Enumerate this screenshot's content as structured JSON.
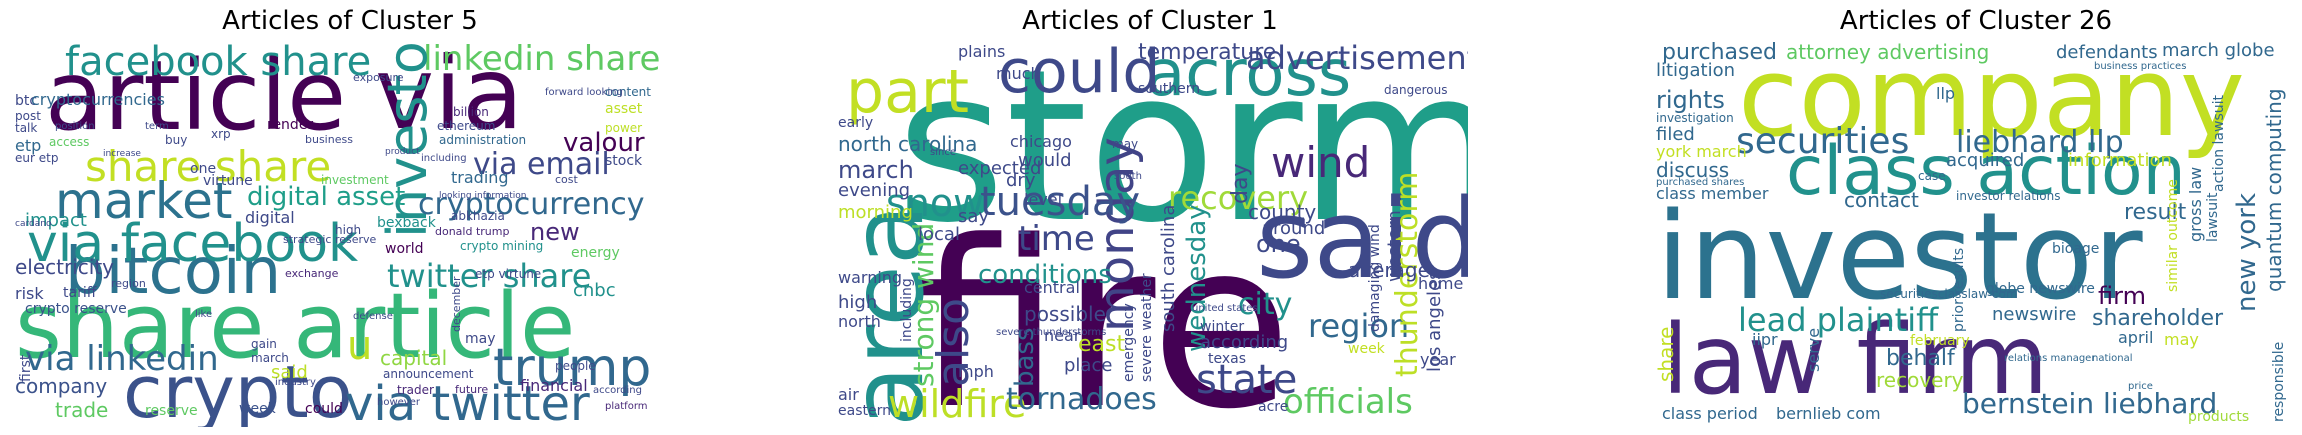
{
  "panels": [
    {
      "title": "Articles of Cluster 5",
      "words": {
        "article": "article",
        "via": "via",
        "share_article": "share article",
        "bitcoin": "bitcoin",
        "crypto": "crypto",
        "facebook_share": "facebook share",
        "linkedin_share": "linkedin share",
        "share_share": "share share",
        "market": "market",
        "via_facebook": "via facebook",
        "investor": "investor",
        "trump": "trump",
        "via_twitter": "via twitter",
        "twitter_share": "twitter share",
        "via_linkedin": "via linkedin",
        "via_email": "via email",
        "cryptocurrency": "cryptocurrency",
        "digital_asset": "digital asset",
        "valour": "valour",
        "u": "u",
        "new": "new",
        "capital": "capital",
        "company": "company",
        "trade": "trade",
        "electricity": "electricity",
        "impact": "impact",
        "etp": "etp",
        "btc": "btc",
        "cryptocurrencies": "cryptocurrencies",
        "financial": "financial",
        "cnbc": "cnbc",
        "digital": "digital",
        "said": "said",
        "risk": "risk",
        "tariff": "tariff",
        "crypto_reserve": "crypto reserve",
        "trading": "trading",
        "energy": "energy",
        "billion": "billion",
        "ethereum": "ethereum",
        "render": "render",
        "announcement": "announcement",
        "people": "people",
        "world": "world",
        "week": "week",
        "could": "could",
        "platform": "platform",
        "abkhazia": "abkhazia",
        "asset": "asset",
        "power": "power",
        "one": "one",
        "content": "content",
        "bexback": "bexback",
        "crypto_mining": "crypto mining",
        "donald_trump": "donald trump",
        "access": "access",
        "talk": "talk",
        "virtune": "virtune",
        "investment": "investment",
        "administration": "administration",
        "including": "including",
        "strategic_reserve": "strategic reserve",
        "may": "may",
        "gain": "gain",
        "march": "march",
        "trader": "trader",
        "future": "future",
        "first": "first",
        "stock": "stock",
        "xrp": "xrp",
        "buy": "buy",
        "business": "business",
        "post": "post",
        "region": "region",
        "exchange": "exchange",
        "forward_looking": "forward looking",
        "exposure": "exposure",
        "high": "high",
        "etp_virtune": "etp virtune",
        "like": "like",
        "position": "position",
        "term": "term",
        "cost": "cost",
        "december": "december",
        "eur_etp": "eur etp",
        "looking_information": "looking information",
        "according": "according",
        "however": "however",
        "defense": "defense",
        "industry": "industry",
        "reserve": "reserve",
        "cardano": "cardano",
        "increase": "increase",
        "product": "product"
      }
    },
    {
      "title": "Articles of Cluster 1",
      "words": {
        "storm": "storm",
        "fire": "fire",
        "area": "area",
        "said": "said",
        "across": "across",
        "could": "could",
        "part": "part",
        "monday": "monday",
        "tuesday": "tuesday",
        "snow": "snow",
        "also": "also",
        "wildfire": "wildfire",
        "tornadoes": "tornadoes",
        "state": "state",
        "officials": "officials",
        "region": "region",
        "wind": "wind",
        "advertisement": "advertisement",
        "thunderstorm": "thunderstorm",
        "recovery": "recovery",
        "city": "city",
        "conditions": "conditions",
        "strong_wind": "strong wind",
        "temperature": "temperature",
        "bass": "bass",
        "wednesday": "wednesday",
        "north_carolina": "north carolina",
        "march": "march",
        "evening": "evening",
        "morning": "morning",
        "expected": "expected",
        "time": "time",
        "day": "day",
        "county": "county",
        "one": "one",
        "average": "average",
        "los_angeles": "los angeles",
        "western": "western",
        "south_carolina": "south carolina",
        "according": "according",
        "winter": "winter",
        "severe_weather": "severe weather",
        "emergency": "emergency",
        "possible": "possible",
        "place": "place",
        "east": "east",
        "near": "near",
        "local": "local",
        "high": "high",
        "warning": "warning",
        "mph": "mph",
        "air": "air",
        "eastern": "eastern",
        "north": "north",
        "plains": "plains",
        "chicago": "chicago",
        "would": "would",
        "dry": "dry",
        "level": "level",
        "say": "say",
        "home": "home",
        "year": "year",
        "week": "week",
        "around": "around",
        "central": "central",
        "much": "much",
        "southern": "southern",
        "dangerous": "dangerous",
        "damaging_wind": "damaging wind",
        "texas": "texas",
        "acre": "acre",
        "including": "including",
        "early": "early",
        "may": "may",
        "since": "since",
        "south": "south",
        "severe_thunderstorms": "severe thunderstorms",
        "united_states": "united states"
      }
    },
    {
      "title": "Articles of Cluster 26",
      "words": {
        "company": "company",
        "investor": "investor",
        "law_firm": "law firm",
        "class_action": "class action",
        "securities": "securities",
        "liebhard_llp": "liebhard llp",
        "lead_plaintiff": "lead plaintiff",
        "bernstein_liebhard": "bernstein liebhard",
        "purchased": "purchased",
        "attorney_advertising": "attorney advertising",
        "defendants": "defendants",
        "march_globe": "march globe",
        "litigation": "litigation",
        "rights": "rights",
        "filed": "filed",
        "discuss": "discuss",
        "york_march": "york march",
        "class_member": "class member",
        "new_york": "new york",
        "shareholder": "shareholder",
        "firm": "firm",
        "result": "result",
        "contact": "contact",
        "information": "information",
        "acquired": "acquired",
        "newswire": "newswire",
        "behalf": "behalf",
        "recovery": "recovery",
        "class_period": "class period",
        "bernlieb_com": "bernlieb com",
        "share": "share",
        "iipr": "iipr",
        "serve": "serve",
        "bioage": "bioage",
        "quantum_computing": "quantum computing",
        "april": "april",
        "may": "may",
        "lawsuit": "lawsuit",
        "gross_law": "gross law",
        "responsible": "responsible",
        "products": "products",
        "llp": "llp",
        "investor_relations": "investor relations",
        "globe_newswire": "globe newswire",
        "similar_outcome": "similar outcome",
        "prior_results": "prior results",
        "securitiesclasslaw_com": "securitiesclasslaw com",
        "february": "february",
        "investigation": "investigation",
        "case": "case",
        "action_lawsuit": "action lawsuit",
        "purchased_shares": "purchased shares",
        "relations_manager": "relations manager",
        "price": "price",
        "national": "national",
        "business_practices": "business practices"
      }
    }
  ]
}
